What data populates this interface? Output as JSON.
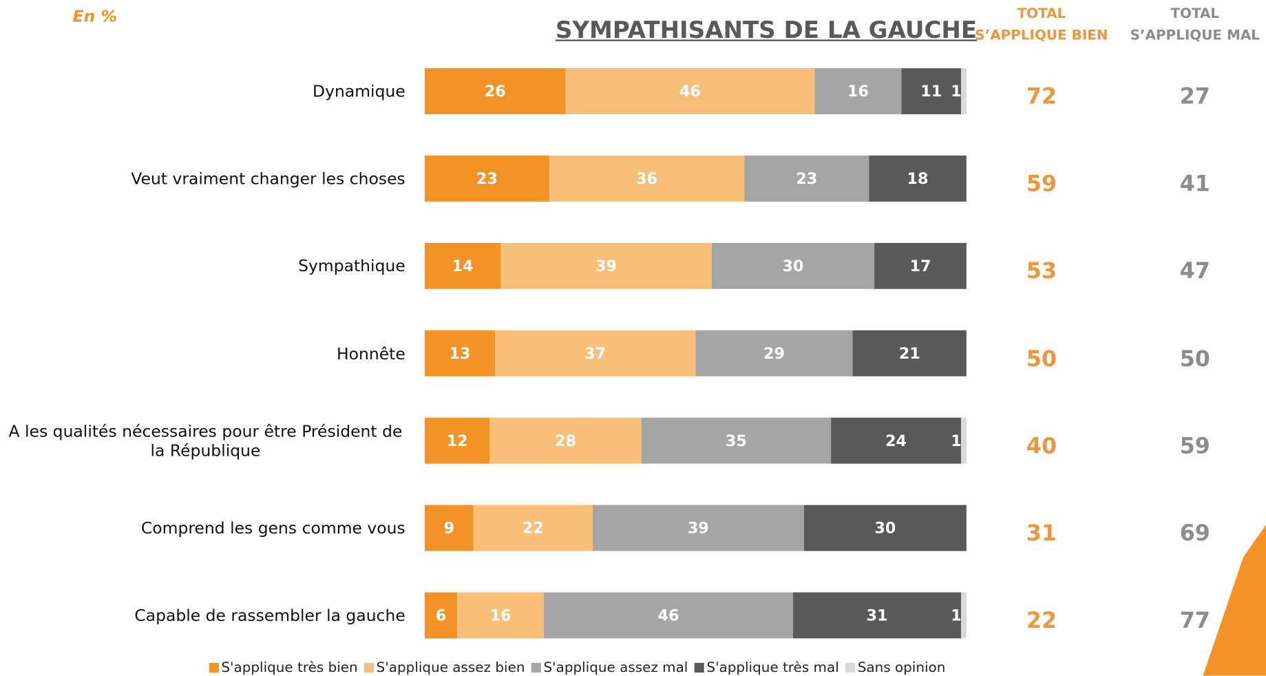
{
  "chart_data": {
    "type": "stacked-bar",
    "subtitle": "En %",
    "title": "SYMPATHISANTS DE LA GAUCHE",
    "categories": [
      "Dynamique",
      "Veut vraiment changer les choses",
      "Sympathique",
      "Honnête",
      "A les qualités nécessaires pour être Président de la République",
      "Comprend les gens comme vous",
      "Capable de rassembler la gauche"
    ],
    "xlim": [
      0,
      100
    ],
    "series": [
      {
        "name": "S'applique très bien",
        "color": "#f39325",
        "values": [
          26,
          23,
          14,
          13,
          12,
          9,
          6
        ]
      },
      {
        "name": "S'applique assez bien",
        "color": "#f8bf78",
        "values": [
          46,
          36,
          39,
          37,
          28,
          22,
          16
        ]
      },
      {
        "name": "S'applique assez mal",
        "color": "#a5a5a5",
        "values": [
          16,
          23,
          30,
          29,
          35,
          39,
          46
        ]
      },
      {
        "name": "S'applique très mal",
        "color": "#595959",
        "values": [
          11,
          18,
          17,
          21,
          24,
          30,
          31
        ]
      },
      {
        "name": "Sans opinion",
        "color": "#d9d9d9",
        "values": [
          1,
          null,
          null,
          null,
          1,
          null,
          1
        ]
      }
    ],
    "totals": [
      {
        "name": "TOTAL\nS’APPLIQUE BIEN",
        "color": "#f0963a",
        "values": [
          72,
          59,
          53,
          50,
          40,
          31,
          22
        ]
      },
      {
        "name": "TOTAL\nS’APPLIQUE MAL",
        "color": "#8c8c8c",
        "values": [
          27,
          41,
          47,
          50,
          59,
          69,
          77
        ]
      }
    ]
  }
}
